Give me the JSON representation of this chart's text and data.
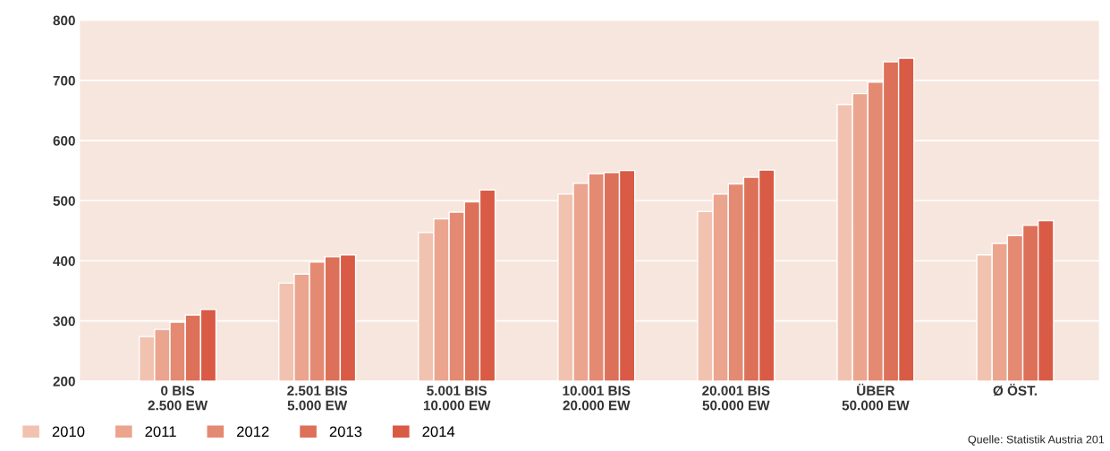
{
  "chart_data": {
    "type": "bar",
    "categories": [
      "0 BIS\n2.500 EW",
      "2.501 BIS\n5.000 EW",
      "5.001 BIS\n10.000 EW",
      "10.001 BIS\n20.000 EW",
      "20.001 BIS\n50.000 EW",
      "ÜBER\n50.000 EW",
      "Ø ÖST."
    ],
    "series": [
      {
        "name": "2010",
        "color": "#f2c2b0",
        "values": [
          274,
          363,
          447,
          511,
          482,
          660,
          410
        ]
      },
      {
        "name": "2011",
        "color": "#eba58e",
        "values": [
          286,
          378,
          470,
          529,
          511,
          678,
          429
        ]
      },
      {
        "name": "2012",
        "color": "#e48a73",
        "values": [
          298,
          398,
          481,
          545,
          528,
          697,
          442
        ]
      },
      {
        "name": "2013",
        "color": "#dd7058",
        "values": [
          310,
          407,
          498,
          547,
          539,
          731,
          459
        ]
      },
      {
        "name": "2014",
        "color": "#d95a45",
        "values": [
          319,
          410,
          518,
          550,
          551,
          737,
          467
        ]
      }
    ],
    "ylim": [
      200,
      800
    ],
    "yticks": [
      200,
      300,
      400,
      500,
      600,
      700,
      800
    ],
    "grid": "y",
    "legend": "bottom left",
    "annotations": [
      "Quelle: Statistik Austria 201"
    ]
  }
}
